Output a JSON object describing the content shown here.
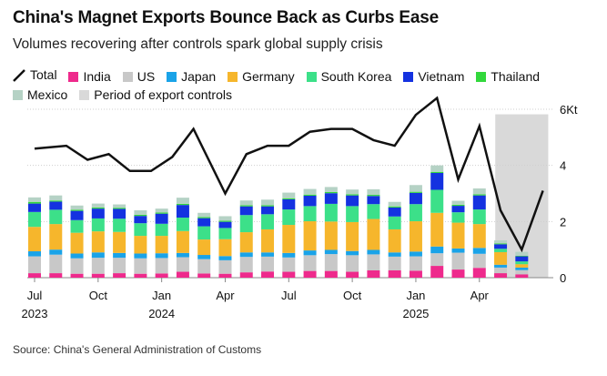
{
  "chart_data": {
    "type": "bar",
    "title": "China's Magnet Exports Bounce Back as Curbs Ease",
    "subtitle": "Volumes recovering after controls spark global supply crisis",
    "unit_label": "6Kt",
    "ylim": [
      0,
      6
    ],
    "y_ticks": [
      {
        "value": 0,
        "label": "0"
      },
      {
        "value": 2,
        "label": "2"
      },
      {
        "value": 4,
        "label": "4"
      },
      {
        "value": 6,
        "label": "6Kt"
      }
    ],
    "x_ticks": [
      {
        "index": 0,
        "label": "Jul",
        "year": "2023"
      },
      {
        "index": 6,
        "label": "Oct",
        "year": ""
      },
      {
        "index": 12,
        "label": "Jan",
        "year": "2024"
      },
      {
        "index": 18,
        "label": "Apr",
        "year": ""
      },
      {
        "index": 24,
        "label": "Jul",
        "year": ""
      },
      {
        "index": 30,
        "label": "Oct",
        "year": ""
      },
      {
        "index": 36,
        "label": "Jan",
        "year": "2025"
      },
      {
        "index": 42,
        "label": "Apr",
        "year": ""
      }
    ],
    "periods": [
      "2023-07a",
      "2023-07b",
      "2023-08a",
      "2023-08b",
      "2023-09a",
      "2023-09b",
      "2023-10a",
      "2023-10b",
      "2023-11a",
      "2023-11b",
      "2023-12a",
      "2023-12b",
      "2024-01a",
      "2024-01b",
      "2024-02a",
      "2024-02b",
      "2024-03a",
      "2024-03b",
      "2024-04a",
      "2024-04b",
      "2024-05a",
      "2024-05b",
      "2024-06a",
      "2024-06b",
      "2024-07a",
      "2024-07b",
      "2024-08a",
      "2024-08b",
      "2024-09a",
      "2024-09b",
      "2024-10a",
      "2024-10b",
      "2024-11a",
      "2024-11b",
      "2024-12a",
      "2024-12b",
      "2025-01a",
      "2025-01b",
      "2025-02a",
      "2025-02b",
      "2025-03a",
      "2025-03b",
      "2025-04a",
      "2025-04b",
      "2025-05a",
      "2025-05b",
      "2025-06a",
      "2025-06b",
      "2025-07a"
    ],
    "bar_indices": [
      0,
      2,
      4,
      6,
      8,
      10,
      12,
      14,
      16,
      18,
      20,
      22,
      24,
      26,
      28,
      30,
      32,
      34,
      36,
      38,
      40,
      42,
      44,
      46
    ],
    "series": [
      {
        "name": "India",
        "color": "#ee2a8c",
        "values": [
          0.16,
          0.16,
          0.14,
          0.14,
          0.16,
          0.14,
          0.15,
          0.21,
          0.15,
          0.14,
          0.19,
          0.22,
          0.21,
          0.24,
          0.24,
          0.21,
          0.26,
          0.26,
          0.25,
          0.42,
          0.29,
          0.35,
          0.16,
          0.12
        ]
      },
      {
        "name": "US",
        "color": "#c8c8c8",
        "values": [
          0.6,
          0.66,
          0.55,
          0.57,
          0.55,
          0.55,
          0.55,
          0.52,
          0.51,
          0.48,
          0.55,
          0.53,
          0.51,
          0.56,
          0.6,
          0.59,
          0.57,
          0.49,
          0.51,
          0.45,
          0.6,
          0.5,
          0.2,
          0.15
        ]
      },
      {
        "name": "Japan",
        "color": "#1aa3e8",
        "values": [
          0.18,
          0.18,
          0.17,
          0.19,
          0.17,
          0.17,
          0.17,
          0.15,
          0.15,
          0.15,
          0.16,
          0.15,
          0.16,
          0.17,
          0.15,
          0.15,
          0.16,
          0.15,
          0.17,
          0.24,
          0.15,
          0.21,
          0.1,
          0.09
        ]
      },
      {
        "name": "Germany",
        "color": "#f6b62c",
        "values": [
          0.87,
          0.91,
          0.74,
          0.75,
          0.75,
          0.63,
          0.62,
          0.78,
          0.55,
          0.6,
          0.72,
          0.82,
          1.0,
          1.04,
          1.01,
          1.03,
          1.1,
          0.82,
          1.08,
          1.2,
          0.92,
          0.85,
          0.45,
          0.12
        ]
      },
      {
        "name": "South Korea",
        "color": "#3ce089",
        "values": [
          0.53,
          0.51,
          0.45,
          0.46,
          0.47,
          0.45,
          0.43,
          0.48,
          0.47,
          0.4,
          0.61,
          0.54,
          0.55,
          0.54,
          0.63,
          0.57,
          0.53,
          0.46,
          0.61,
          0.82,
          0.37,
          0.52,
          0.12,
          0.1
        ]
      },
      {
        "name": "Vietnam",
        "color": "#1432e0",
        "values": [
          0.3,
          0.29,
          0.33,
          0.35,
          0.35,
          0.26,
          0.36,
          0.45,
          0.29,
          0.22,
          0.31,
          0.28,
          0.36,
          0.37,
          0.38,
          0.38,
          0.29,
          0.32,
          0.4,
          0.6,
          0.23,
          0.5,
          0.16,
          0.18
        ]
      },
      {
        "name": "Thailand",
        "color": "#32d83c",
        "values": [
          0.06,
          0.04,
          0.04,
          0.04,
          0.04,
          0.04,
          0.04,
          0.04,
          0.04,
          0.04,
          0.04,
          0.04,
          0.04,
          0.04,
          0.04,
          0.04,
          0.04,
          0.04,
          0.04,
          0.04,
          0.04,
          0.04,
          0.03,
          0.02
        ]
      },
      {
        "name": "Mexico",
        "color": "#b5d2c5",
        "values": [
          0.16,
          0.18,
          0.15,
          0.14,
          0.12,
          0.16,
          0.14,
          0.22,
          0.15,
          0.16,
          0.17,
          0.2,
          0.2,
          0.2,
          0.18,
          0.17,
          0.2,
          0.16,
          0.24,
          0.23,
          0.14,
          0.21,
          0.11,
          0.14
        ]
      }
    ],
    "total": {
      "name": "Total",
      "color": "#111111",
      "x": [
        0,
        3,
        5,
        7,
        9,
        11,
        13,
        15,
        18,
        20,
        22,
        24,
        26,
        28,
        30,
        32,
        34,
        36,
        38,
        40,
        42,
        44,
        46,
        48
      ],
      "values": [
        4.6,
        4.7,
        4.2,
        4.4,
        3.8,
        3.8,
        4.3,
        5.3,
        3.0,
        4.4,
        4.7,
        4.7,
        5.2,
        5.3,
        5.3,
        4.9,
        4.7,
        5.8,
        6.4,
        3.5,
        5.4,
        2.4,
        1.0,
        3.1
      ]
    },
    "export_controls": {
      "name": "Period of export controls",
      "color": "#d9d9d9",
      "start_index": 43.5,
      "end_index": 48.5
    }
  },
  "source": "Source: China's General Administration of Customs"
}
